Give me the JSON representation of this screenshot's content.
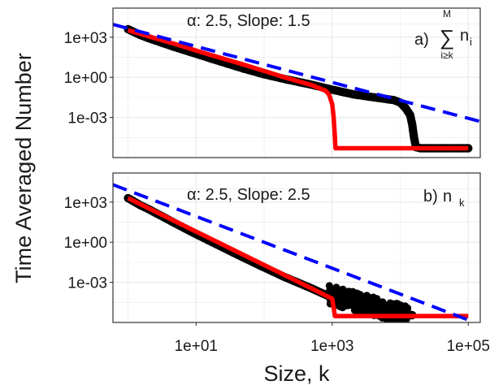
{
  "figure": {
    "ylabel": "Time Averaged Number",
    "xlabel": "Size, k",
    "background": "#ffffff",
    "grid_color": "#ebebeb",
    "panel_border_color": "#333333"
  },
  "chart_data": [
    {
      "type": "line",
      "panel": "a",
      "annotation": "α: 2.5, Slope: 1.5",
      "panel_label_text": "a)",
      "panel_label_sum_top": "M",
      "panel_label_sum_symbol": "∑",
      "panel_label_sum_bottom": "i≥k",
      "panel_label_var": "n",
      "panel_label_sub": "i",
      "x_scale": "log10",
      "y_scale": "log10",
      "xlim": [
        0.6,
        150000
      ],
      "ylim": [
        1e-06,
        150000
      ],
      "x_ticks": [
        {
          "value": 10,
          "label": "1e+01"
        },
        {
          "value": 1000,
          "label": "1e+03"
        },
        {
          "value": 100000,
          "label": "1e+05"
        }
      ],
      "y_ticks": [
        {
          "value": 1000,
          "label": "1e+03"
        },
        {
          "value": 1,
          "label": "1e+00"
        },
        {
          "value": 0.001,
          "label": "1e-03"
        }
      ],
      "grid": true,
      "series": [
        {
          "style": "points",
          "color": "#000000",
          "points": [
            [
              1,
              4000
            ],
            [
              1.5,
              1500
            ],
            [
              2,
              850
            ],
            [
              3,
              420
            ],
            [
              5,
              175
            ],
            [
              10,
              58
            ],
            [
              20,
              19
            ],
            [
              50,
              4.5
            ],
            [
              100,
              1.7
            ],
            [
              200,
              0.75
            ],
            [
              500,
              0.28
            ],
            [
              1000,
              0.12
            ],
            [
              2000,
              0.055
            ],
            [
              3000,
              0.04
            ],
            [
              5000,
              0.028
            ],
            [
              8000,
              0.02
            ],
            [
              10000,
              0.013
            ],
            [
              12000,
              0.005
            ],
            [
              14000,
              0.0015
            ],
            [
              15000,
              0.0003
            ],
            [
              16000,
              3e-05
            ],
            [
              17000,
              6e-06
            ],
            [
              20000,
              5e-06
            ],
            [
              50000,
              5e-06
            ],
            [
              100000,
              5e-06
            ]
          ]
        },
        {
          "style": "line",
          "color": "#ff0000",
          "points": [
            [
              1,
              3300
            ],
            [
              2,
              1150
            ],
            [
              5,
              300
            ],
            [
              10,
              100
            ],
            [
              20,
              35
            ],
            [
              50,
              9
            ],
            [
              100,
              3
            ],
            [
              200,
              1
            ],
            [
              500,
              0.26
            ],
            [
              800,
              0.1
            ],
            [
              900,
              0.05
            ],
            [
              1000,
              0.01
            ],
            [
              1050,
              0.001
            ],
            [
              1100,
              3e-05
            ],
            [
              1120,
              5e-06
            ],
            [
              100000,
              5e-06
            ]
          ]
        },
        {
          "style": "dashed",
          "color": "#0000ff",
          "points": [
            [
              0.6,
              9000
            ],
            [
              150000,
              0.0005
            ]
          ]
        }
      ]
    },
    {
      "type": "line",
      "panel": "b",
      "annotation": "α: 2.5, Slope: 2.5",
      "panel_label_text": "b)",
      "panel_label_var": "n",
      "panel_label_sub": "k",
      "x_scale": "log10",
      "y_scale": "log10",
      "xlim": [
        0.6,
        150000
      ],
      "ylim": [
        1e-06,
        150000
      ],
      "x_ticks": [
        {
          "value": 10,
          "label": "1e+01"
        },
        {
          "value": 1000,
          "label": "1e+03"
        },
        {
          "value": 100000,
          "label": "1e+05"
        }
      ],
      "y_ticks": [
        {
          "value": 1000,
          "label": "1e+03"
        },
        {
          "value": 1,
          "label": "1e+00"
        },
        {
          "value": 0.001,
          "label": "1e-03"
        }
      ],
      "grid": true,
      "series": [
        {
          "style": "points",
          "color": "#000000",
          "points": [
            [
              1,
              2000
            ],
            [
              1.5,
              600
            ],
            [
              2,
              300
            ],
            [
              3,
              100
            ],
            [
              5,
              25
            ],
            [
              10,
              4
            ],
            [
              20,
              0.7
            ],
            [
              50,
              0.07
            ],
            [
              100,
              0.013
            ],
            [
              200,
              0.0025
            ],
            [
              500,
              0.00035
            ],
            [
              1000,
              7e-05
            ],
            [
              1200,
              5e-05
            ],
            [
              2000,
              4e-05
            ],
            [
              3000,
              2e-05
            ],
            [
              5000,
              8e-06
            ],
            [
              8000,
              5e-06
            ],
            [
              10000,
              4e-06
            ],
            [
              15000,
              3.5e-06
            ]
          ]
        },
        {
          "style": "line",
          "color": "#ff0000",
          "points": [
            [
              1,
              2000
            ],
            [
              10,
              6.3
            ],
            [
              100,
              0.02
            ],
            [
              1000,
              6e-05
            ],
            [
              1100,
              3e-06
            ],
            [
              100000,
              3e-06
            ]
          ]
        },
        {
          "style": "dashed",
          "color": "#0000ff",
          "points": [
            [
              0.6,
              20000
            ],
            [
              100000,
              8e-07
            ]
          ]
        }
      ]
    }
  ]
}
